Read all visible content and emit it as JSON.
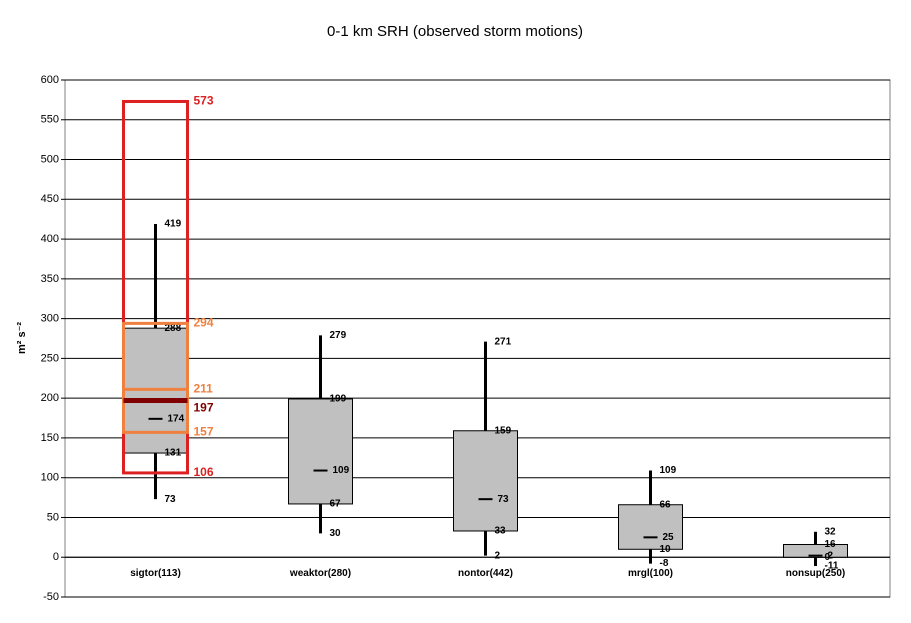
{
  "chart_data": {
    "type": "box",
    "title": "0-1 km SRH (observed storm motions)",
    "ylabel": "m² s⁻²",
    "categories": [
      "sigtor(113)",
      "weaktor(280)",
      "nontor(442)",
      "mrgl(100)",
      "nonsup(250)"
    ],
    "low": [
      73,
      30,
      2,
      -8,
      -11
    ],
    "q1": [
      131,
      67,
      33,
      10,
      0
    ],
    "median": [
      174,
      109,
      73,
      25,
      2
    ],
    "q3": [
      288,
      199,
      159,
      66,
      16
    ],
    "high": [
      419,
      279,
      271,
      109,
      32
    ],
    "box_color": "#c0c0c0",
    "ylim": [
      -50,
      600
    ],
    "yticks": [
      -50,
      0,
      50,
      100,
      150,
      200,
      250,
      300,
      350,
      400,
      450,
      500,
      550,
      600
    ],
    "grid": true,
    "overlay_boxes": [
      {
        "category": 0,
        "low": 106,
        "high": 573,
        "color": "#dd2020"
      },
      {
        "category": 0,
        "low": 157,
        "high": 294,
        "color": "#f08040"
      }
    ],
    "overlay_lines": [
      {
        "category": 0,
        "value": 211,
        "color": "#f08040"
      },
      {
        "category": 0,
        "value": 197,
        "color": "#800000"
      }
    ]
  }
}
